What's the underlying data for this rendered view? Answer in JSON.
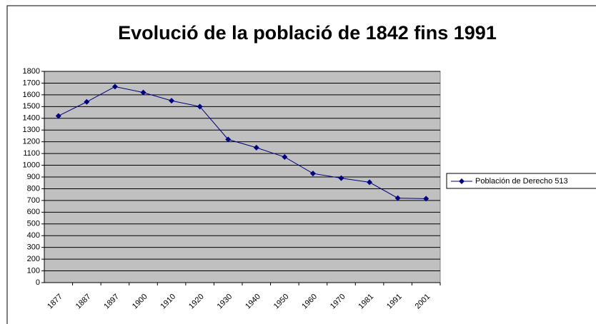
{
  "chart_data": {
    "type": "line",
    "title": "Evolució de la població de 1842 fins 1991",
    "categories": [
      "1877",
      "1887",
      "1897",
      "1900",
      "1910",
      "1920",
      "1930",
      "1940",
      "1950",
      "1960",
      "1970",
      "1981",
      "1991",
      "2001"
    ],
    "series": [
      {
        "name": "Población de Derecho 513",
        "color": "#000080",
        "values": [
          1420,
          1540,
          1670,
          1620,
          1550,
          1500,
          1220,
          1150,
          1070,
          930,
          890,
          855,
          720,
          715
        ]
      }
    ],
    "ylim": [
      0,
      1800
    ],
    "yticks": [
      0,
      100,
      200,
      300,
      400,
      500,
      600,
      700,
      800,
      900,
      1000,
      1100,
      1200,
      1300,
      1400,
      1500,
      1600,
      1700,
      1800
    ],
    "grid": true,
    "legend": "right"
  }
}
